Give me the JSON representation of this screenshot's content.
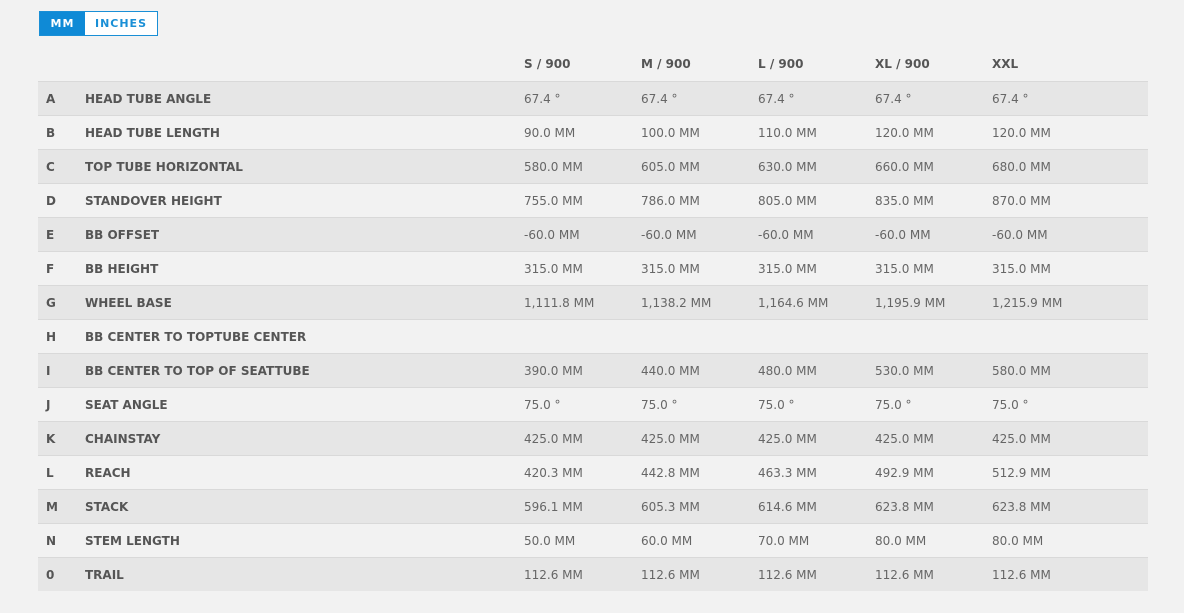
{
  "unit_toggle": {
    "mm_label": "MM",
    "inches_label": "INCHES"
  },
  "table": {
    "headers": [
      "S / 900",
      "M / 900",
      "L / 900",
      "XL / 900",
      "XXL"
    ],
    "rows": [
      {
        "letter": "A",
        "name": "HEAD TUBE ANGLE",
        "values": [
          "67.4 °",
          "67.4 °",
          "67.4 °",
          "67.4 °",
          "67.4 °"
        ]
      },
      {
        "letter": "B",
        "name": "HEAD TUBE LENGTH",
        "values": [
          "90.0 MM",
          "100.0 MM",
          "110.0 MM",
          "120.0 MM",
          "120.0 MM"
        ]
      },
      {
        "letter": "C",
        "name": "TOP TUBE HORIZONTAL",
        "values": [
          "580.0 MM",
          "605.0 MM",
          "630.0 MM",
          "660.0 MM",
          "680.0 MM"
        ]
      },
      {
        "letter": "D",
        "name": "STANDOVER HEIGHT",
        "values": [
          "755.0 MM",
          "786.0 MM",
          "805.0 MM",
          "835.0 MM",
          "870.0 MM"
        ]
      },
      {
        "letter": "E",
        "name": "BB OFFSET",
        "values": [
          "-60.0 MM",
          "-60.0 MM",
          "-60.0 MM",
          "-60.0 MM",
          "-60.0 MM"
        ]
      },
      {
        "letter": "F",
        "name": "BB HEIGHT",
        "values": [
          "315.0 MM",
          "315.0 MM",
          "315.0 MM",
          "315.0 MM",
          "315.0 MM"
        ]
      },
      {
        "letter": "G",
        "name": "WHEEL BASE",
        "values": [
          "1,111.8 MM",
          "1,138.2 MM",
          "1,164.6 MM",
          "1,195.9 MM",
          "1,215.9 MM"
        ]
      },
      {
        "letter": "H",
        "name": "BB CENTER TO TOPTUBE CENTER",
        "values": [
          "",
          "",
          "",
          "",
          ""
        ]
      },
      {
        "letter": "I",
        "name": "BB CENTER TO TOP OF SEATTUBE",
        "values": [
          "390.0 MM",
          "440.0 MM",
          "480.0 MM",
          "530.0 MM",
          "580.0 MM"
        ]
      },
      {
        "letter": "J",
        "name": "SEAT ANGLE",
        "values": [
          "75.0 °",
          "75.0 °",
          "75.0 °",
          "75.0 °",
          "75.0 °"
        ]
      },
      {
        "letter": "K",
        "name": "CHAINSTAY",
        "values": [
          "425.0 MM",
          "425.0 MM",
          "425.0 MM",
          "425.0 MM",
          "425.0 MM"
        ]
      },
      {
        "letter": "L",
        "name": "REACH",
        "values": [
          "420.3 MM",
          "442.8 MM",
          "463.3 MM",
          "492.9 MM",
          "512.9 MM"
        ]
      },
      {
        "letter": "M",
        "name": "STACK",
        "values": [
          "596.1 MM",
          "605.3 MM",
          "614.6 MM",
          "623.8 MM",
          "623.8 MM"
        ]
      },
      {
        "letter": "N",
        "name": "STEM LENGTH",
        "values": [
          "50.0 MM",
          "60.0 MM",
          "70.0 MM",
          "80.0 MM",
          "80.0 MM"
        ]
      },
      {
        "letter": "0",
        "name": "TRAIL",
        "values": [
          "112.6 MM",
          "112.6 MM",
          "112.6 MM",
          "112.6 MM",
          "112.6 MM"
        ]
      }
    ]
  },
  "colors": {
    "accent": "#0f8ad6",
    "row_shaded": "#e6e6e6",
    "row_plain": "#f2f2f2",
    "background": "#f2f2f2"
  }
}
